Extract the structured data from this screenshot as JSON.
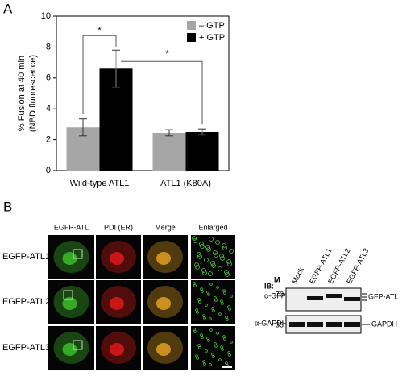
{
  "panel_labels": [
    "A",
    "B"
  ],
  "chart_data": {
    "type": "bar",
    "ylabel": [
      "% Fusion at 40 min",
      "(NBD fluorescence)"
    ],
    "categories": [
      "Wild-type ATL1",
      "ATL1 (K80A)"
    ],
    "series": [
      {
        "name": "– GTP",
        "color": "#a6a6a6",
        "values": [
          2.8,
          2.45
        ],
        "errors": [
          0.55,
          0.2
        ]
      },
      {
        "name": "+ GTP",
        "color": "#000000",
        "values": [
          6.6,
          2.5
        ],
        "errors": [
          1.2,
          0.2
        ]
      }
    ],
    "ylim": [
      0,
      10
    ],
    "yticks": [
      0,
      2,
      4,
      6,
      8,
      10
    ],
    "legend": "upper right",
    "annotations": [
      "*",
      "*"
    ]
  },
  "panel_b": {
    "columns": [
      "EGFP-ATL",
      "PDI (ER)",
      "Merge",
      "Enlarged"
    ],
    "rows": [
      "EGFP-ATL1",
      "EGFP-ATL2",
      "EGFP-ATL3"
    ],
    "blot": {
      "ib": "IB:",
      "marker_lane": "M",
      "lanes": [
        "Mock",
        "EGFP-ATL1",
        "EGFP-ATL2",
        "EGFP-ATL3"
      ],
      "antibodies": [
        "α-GFP",
        "α-GAPDH"
      ],
      "markers": [
        "70",
        "35"
      ],
      "band_labels": [
        "GFP-ATL",
        "GAPDH"
      ]
    }
  }
}
